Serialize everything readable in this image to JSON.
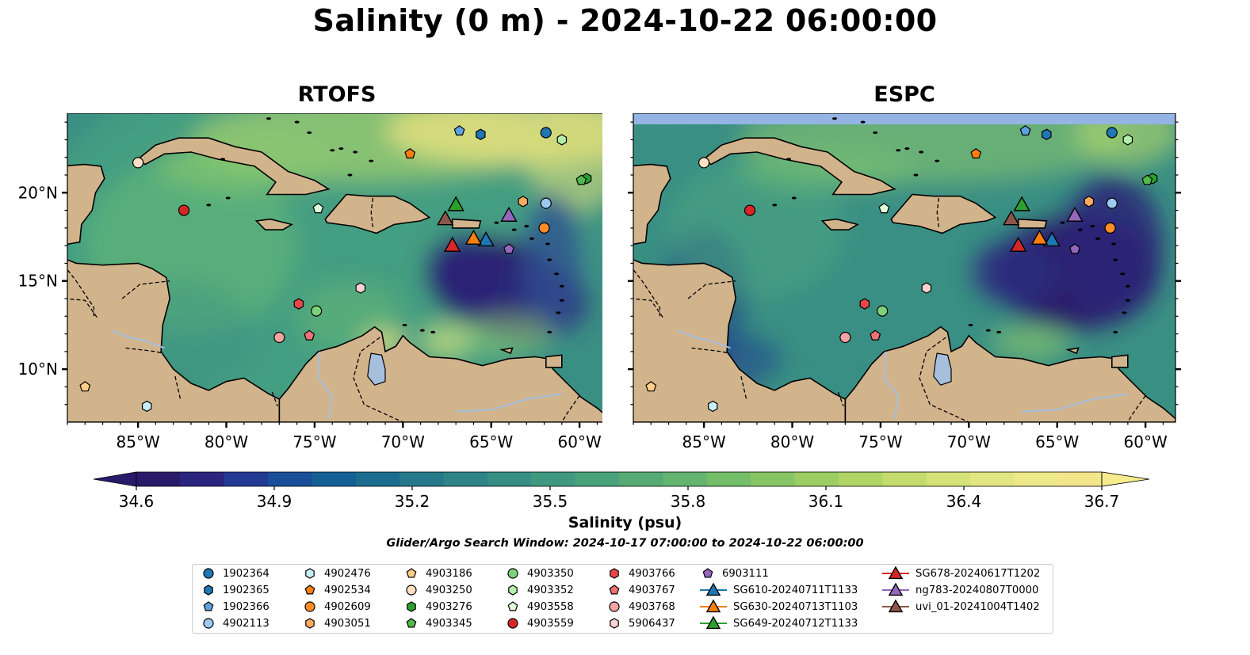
{
  "title": "Salinity (0 m) - 2024-10-22 06:00:00",
  "panels": [
    {
      "title": "RTOFS"
    },
    {
      "title": "ESPC"
    }
  ],
  "axes": {
    "lon_ticks": [
      "85°W",
      "80°W",
      "75°W",
      "70°W",
      "65°W",
      "60°W"
    ],
    "lat_ticks": [
      "20°N",
      "15°N",
      "10°N"
    ]
  },
  "colorbar": {
    "label": "Salinity (psu)",
    "ticks": [
      "34.6",
      "34.9",
      "35.2",
      "35.5",
      "35.8",
      "36.1",
      "36.4",
      "36.7"
    ],
    "range": [
      34.6,
      36.7
    ],
    "colormap": "haline",
    "extend": "both"
  },
  "search_window": "Glider/Argo Search Window: 2024-10-17 07:00:00 to 2024-10-22 06:00:00",
  "colors": {
    "land": "#d2b48c",
    "lake": "#a5bfdd",
    "ocean_low": "#2a1a6a",
    "ocean_mid": "#3a8f83",
    "ocean_high": "#f3e58a",
    "missing": "#94b4e4"
  },
  "chart_data": {
    "type": "map",
    "x_range": [
      -89,
      -58.3
    ],
    "y_range": [
      7,
      24.5
    ],
    "markers": [
      {
        "id": "1902364",
        "shape": "circle",
        "color": "#1f77b4",
        "lon": -61.9,
        "lat": 23.4
      },
      {
        "id": "1902365",
        "shape": "hexagon",
        "color": "#1f77b4",
        "lon": -65.6,
        "lat": 23.3
      },
      {
        "id": "1902366",
        "shape": "pentagon",
        "color": "#5fa2e2",
        "lon": -66.8,
        "lat": 23.5
      },
      {
        "id": "4902113",
        "shape": "circle",
        "color": "#9ccaf0",
        "lon": -61.9,
        "lat": 19.4
      },
      {
        "id": "4902476",
        "shape": "hexagon",
        "color": "#c8eef8",
        "lon": -84.5,
        "lat": 7.9
      },
      {
        "id": "4902534",
        "shape": "pentagon",
        "color": "#ff7f0e",
        "lon": -69.6,
        "lat": 22.2
      },
      {
        "id": "4902609",
        "shape": "circle",
        "color": "#ff8c26",
        "lon": -62.0,
        "lat": 18.0
      },
      {
        "id": "4903051",
        "shape": "hexagon",
        "color": "#ffaa5e",
        "lon": -63.2,
        "lat": 19.5
      },
      {
        "id": "4903186",
        "shape": "pentagon",
        "color": "#ffcf8a",
        "lon": -88.0,
        "lat": 9.0
      },
      {
        "id": "4903250",
        "shape": "circle",
        "color": "#fde0c4",
        "lon": -85.0,
        "lat": 21.7
      },
      {
        "id": "4903276",
        "shape": "hexagon",
        "color": "#2ca02c",
        "lon": -59.6,
        "lat": 20.8
      },
      {
        "id": "4903345",
        "shape": "pentagon",
        "color": "#52b84c",
        "lon": -59.9,
        "lat": 20.7
      },
      {
        "id": "4903350",
        "shape": "circle",
        "color": "#7fd07a",
        "lon": -74.9,
        "lat": 13.3
      },
      {
        "id": "4903352",
        "shape": "hexagon",
        "color": "#b4eeab",
        "lon": -61.0,
        "lat": 23.0
      },
      {
        "id": "4903558",
        "shape": "pentagon",
        "color": "#e0fbd8",
        "lon": -74.8,
        "lat": 19.1
      },
      {
        "id": "4903559",
        "shape": "circle",
        "color": "#d62728",
        "lon": -82.4,
        "lat": 19.0
      },
      {
        "id": "4903766",
        "shape": "hexagon",
        "color": "#e8474a",
        "lon": -75.9,
        "lat": 13.7
      },
      {
        "id": "4903767",
        "shape": "pentagon",
        "color": "#f07274",
        "lon": -75.3,
        "lat": 11.9
      },
      {
        "id": "4903768",
        "shape": "circle",
        "color": "#f4a3a3",
        "lon": -77.0,
        "lat": 11.8
      },
      {
        "id": "5906437",
        "shape": "hexagon",
        "color": "#fcd3d3",
        "lon": -72.4,
        "lat": 14.6
      },
      {
        "id": "6903111",
        "shape": "pentagon",
        "color": "#9467bd",
        "lon": -64.0,
        "lat": 16.8
      },
      {
        "id": "SG610-20240711T1133",
        "shape": "triangle",
        "color": "#1f77b4",
        "lon": -65.3,
        "lat": 17.3
      },
      {
        "id": "SG630-20240713T1103",
        "shape": "triangle",
        "color": "#ff7f0e",
        "lon": -66.0,
        "lat": 17.4
      },
      {
        "id": "SG649-20240712T1133",
        "shape": "triangle",
        "color": "#2ca02c",
        "lon": -67.0,
        "lat": 19.3
      },
      {
        "id": "SG678-20240617T1202",
        "shape": "triangle",
        "color": "#d62728",
        "lon": -67.2,
        "lat": 17.0
      },
      {
        "id": "ng783-20240807T0000",
        "shape": "triangle",
        "color": "#9467bd",
        "lon": -64.0,
        "lat": 18.7
      },
      {
        "id": "uvi_01-20241004T1402",
        "shape": "triangle",
        "color": "#8c564b",
        "lon": -67.6,
        "lat": 18.5
      }
    ]
  },
  "legend": {
    "columns": [
      [
        "1902364",
        "1902365",
        "1902366",
        "4902113"
      ],
      [
        "4902476",
        "4902534",
        "4902609",
        "4903051"
      ],
      [
        "4903186",
        "4903250",
        "4903276",
        "4903345"
      ],
      [
        "4903350",
        "4903352",
        "4903558",
        "4903559"
      ],
      [
        "4903766",
        "4903767",
        "4903768",
        "5906437"
      ],
      [
        "6903111",
        "SG610-20240711T1133",
        "SG630-20240713T1103",
        "SG649-20240712T1133"
      ],
      [
        "SG678-20240617T1202",
        "ng783-20240807T0000",
        "uvi_01-20241004T1402"
      ]
    ]
  }
}
